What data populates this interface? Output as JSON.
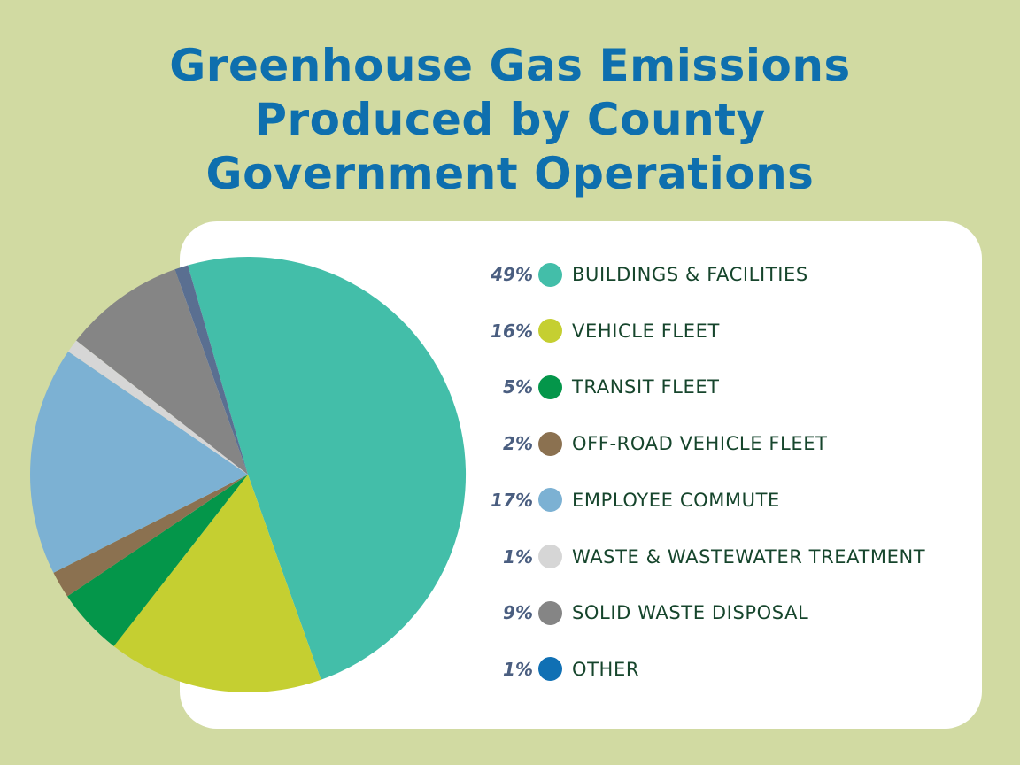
{
  "title_lines": [
    "Greenhouse Gas Emissions",
    "Produced by County",
    "Government Operations"
  ],
  "chart_data": {
    "type": "pie",
    "title": "Greenhouse Gas Emissions Produced by County Government Operations",
    "unit": "%",
    "legend_position": "right",
    "slices": [
      {
        "label": "BUILDINGS & FACILITIES",
        "value": 49,
        "pct_label": "49%",
        "color": "#43bea9"
      },
      {
        "label": "VEHICLE FLEET",
        "value": 16,
        "pct_label": "16%",
        "color": "#c5cf31"
      },
      {
        "label": "TRANSIT FLEET",
        "value": 5,
        "pct_label": "5%",
        "color": "#04964a"
      },
      {
        "label": "OFF-ROAD VEHICLE FLEET",
        "value": 2,
        "pct_label": "2%",
        "color": "#8b7150"
      },
      {
        "label": "EMPLOYEE COMMUTE",
        "value": 17,
        "pct_label": "17%",
        "color": "#7cb1d3"
      },
      {
        "label": "WASTE & WASTEWATER TREATMENT",
        "value": 1,
        "pct_label": "1%",
        "color": "#d6d6d6"
      },
      {
        "label": "SOLID WASTE DISPOSAL",
        "value": 9,
        "pct_label": "9%",
        "color": "#858585"
      },
      {
        "label": "OTHER",
        "value": 1,
        "pct_label": "1%",
        "color": "#1070b4",
        "pie_color": "#5a6f91"
      }
    ]
  }
}
